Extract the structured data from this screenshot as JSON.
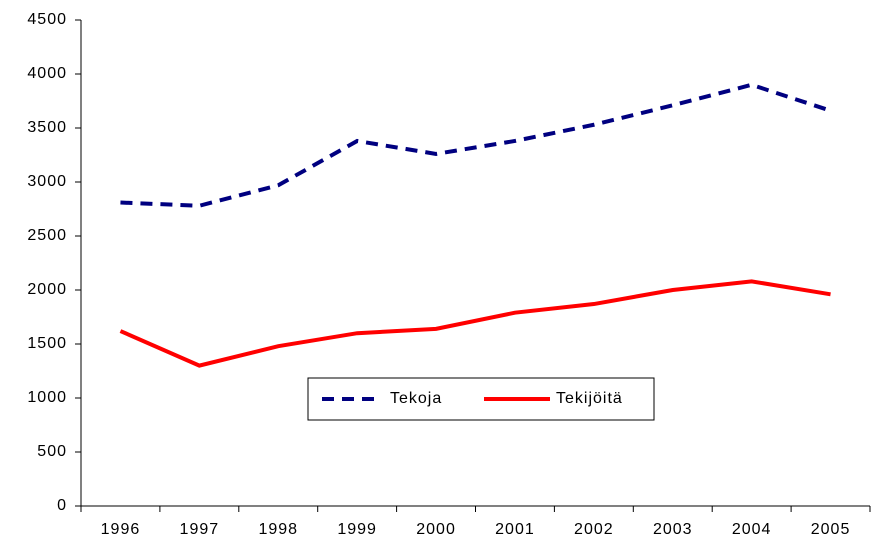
{
  "chart_data": {
    "type": "line",
    "categories": [
      "1996",
      "1997",
      "1998",
      "1999",
      "2000",
      "2001",
      "2002",
      "2003",
      "2004",
      "2005"
    ],
    "series": [
      {
        "name": "Tekoja",
        "color": "#000080",
        "dash": true,
        "values": [
          2810,
          2780,
          2970,
          3380,
          3260,
          3380,
          3530,
          3710,
          3900,
          3660
        ]
      },
      {
        "name": "Tekijöitä",
        "color": "#ff0000",
        "dash": false,
        "values": [
          1620,
          1300,
          1480,
          1600,
          1640,
          1790,
          1870,
          2000,
          2080,
          1960
        ]
      }
    ],
    "ylim": [
      0,
      4500
    ],
    "yticks": [
      0,
      500,
      1000,
      1500,
      2000,
      2500,
      3000,
      3500,
      4000,
      4500
    ],
    "grid": false,
    "legend": "center"
  }
}
